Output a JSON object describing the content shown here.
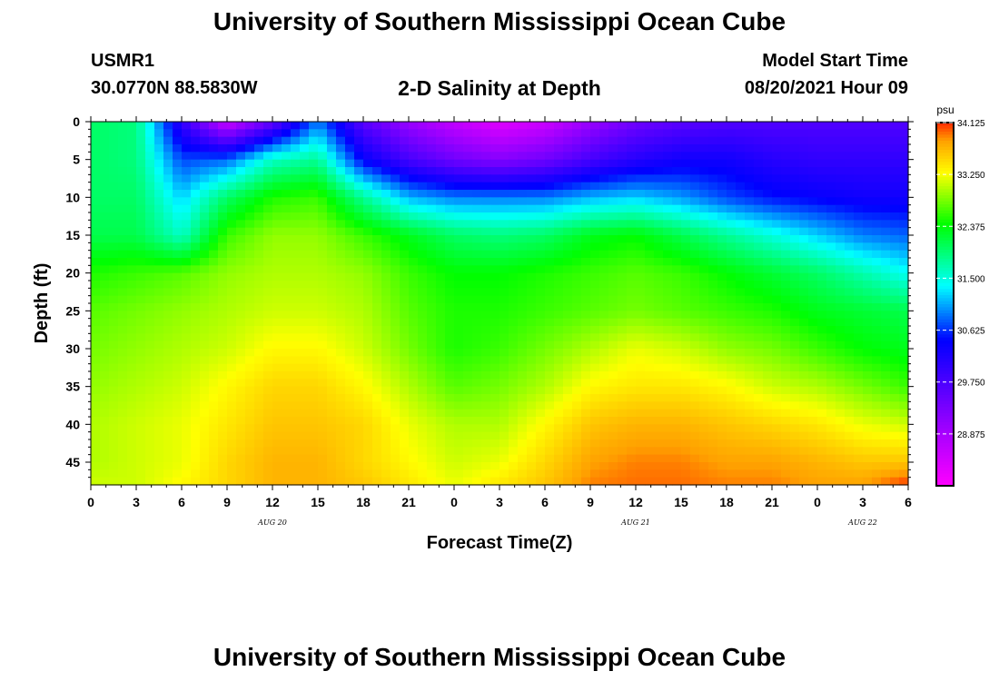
{
  "header": {
    "title": "University of Southern Mississippi Ocean Cube",
    "station": "USMR1",
    "coords": "30.0770N  88.5830W",
    "subtitle": "2-D Salinity at Depth",
    "model_start_label": "Model Start Time",
    "model_start_value": "08/20/2021 Hour 09"
  },
  "footer": {
    "title": "University of Southern Mississippi Ocean Cube"
  },
  "chart_data": {
    "type": "heatmap",
    "title": "2-D Salinity at Depth",
    "xlabel": "Forecast Time(Z)",
    "ylabel": "Depth (ft)",
    "x_hours_range": [
      0,
      54
    ],
    "x_tick_labels": [
      "0",
      "3",
      "6",
      "9",
      "12",
      "15",
      "18",
      "21",
      "0",
      "3",
      "6",
      "9",
      "12",
      "15",
      "18",
      "21",
      "0",
      "3",
      "6"
    ],
    "x_date_labels": [
      {
        "label": "AUG 20",
        "hour": 12
      },
      {
        "label": "AUG 21",
        "hour": 36
      },
      {
        "label": "AUG 22",
        "hour": 51
      }
    ],
    "y_range_ft": [
      0,
      48
    ],
    "y_ticks": [
      0,
      5,
      10,
      15,
      20,
      25,
      30,
      35,
      40,
      45
    ],
    "colorbar": {
      "unit": "psu",
      "range": [
        28.0,
        34.125
      ],
      "tick_values": [
        34.125,
        33.25,
        32.375,
        31.5,
        30.625,
        29.75,
        28.875
      ],
      "tick_labels": [
        "34.125",
        "33.250",
        "32.375",
        "31.500",
        "30.625",
        "29.750",
        "28.875"
      ]
    },
    "salinity_grid": {
      "hours": [
        0,
        3,
        6,
        9,
        12,
        15,
        18,
        21,
        24,
        27,
        30,
        33,
        36,
        39,
        42,
        45,
        48,
        51,
        54
      ],
      "depths_ft": [
        0,
        5,
        10,
        15,
        20,
        25,
        30,
        35,
        40,
        45,
        48
      ],
      "values_psu": [
        [
          32.0,
          31.9,
          30.0,
          28.5,
          29.5,
          30.9,
          29.6,
          29.0,
          28.6,
          28.3,
          28.5,
          29.0,
          29.4,
          29.6,
          29.7,
          29.7,
          29.7,
          29.7,
          29.7
        ],
        [
          32.0,
          31.9,
          30.7,
          30.8,
          31.6,
          31.8,
          30.4,
          29.8,
          29.4,
          29.2,
          29.4,
          29.8,
          30.1,
          30.3,
          30.3,
          30.1,
          30.0,
          30.0,
          30.0
        ],
        [
          32.0,
          32.0,
          31.2,
          32.0,
          32.5,
          32.6,
          31.8,
          31.1,
          30.9,
          30.9,
          30.9,
          31.1,
          31.2,
          31.0,
          30.7,
          30.5,
          30.4,
          30.3,
          30.3
        ],
        [
          32.1,
          32.1,
          31.6,
          32.6,
          32.9,
          32.9,
          32.6,
          32.3,
          32.0,
          31.9,
          32.0,
          32.3,
          32.4,
          32.1,
          31.8,
          31.5,
          31.2,
          30.9,
          30.8
        ],
        [
          32.5,
          32.6,
          32.7,
          32.9,
          33.0,
          33.0,
          32.9,
          32.6,
          32.4,
          32.4,
          32.5,
          32.6,
          32.7,
          32.6,
          32.4,
          32.2,
          32.0,
          31.7,
          31.4
        ],
        [
          32.7,
          32.8,
          32.9,
          33.0,
          33.1,
          33.1,
          33.0,
          32.7,
          32.5,
          32.5,
          32.6,
          32.7,
          32.8,
          32.7,
          32.6,
          32.5,
          32.3,
          32.2,
          32.1
        ],
        [
          32.8,
          32.9,
          33.0,
          33.1,
          33.3,
          33.3,
          33.1,
          32.8,
          32.5,
          32.6,
          32.8,
          33.0,
          33.2,
          33.1,
          32.9,
          32.8,
          32.6,
          32.4,
          32.3
        ],
        [
          32.9,
          33.0,
          33.1,
          33.3,
          33.5,
          33.5,
          33.3,
          33.0,
          32.7,
          32.8,
          33.0,
          33.3,
          33.4,
          33.4,
          33.3,
          33.1,
          33.0,
          32.8,
          32.6
        ],
        [
          33.0,
          33.1,
          33.2,
          33.4,
          33.6,
          33.6,
          33.5,
          33.2,
          33.0,
          33.0,
          33.3,
          33.6,
          33.7,
          33.7,
          33.6,
          33.5,
          33.4,
          33.2,
          33.1
        ],
        [
          33.0,
          33.1,
          33.2,
          33.5,
          33.7,
          33.7,
          33.5,
          33.3,
          33.1,
          33.2,
          33.5,
          33.8,
          33.9,
          33.9,
          33.8,
          33.8,
          33.7,
          33.6,
          33.6
        ],
        [
          33.1,
          33.1,
          33.3,
          33.5,
          33.7,
          33.7,
          33.6,
          33.4,
          33.2,
          33.4,
          33.6,
          33.9,
          33.95,
          33.95,
          33.9,
          33.9,
          33.8,
          33.8,
          34.1
        ]
      ]
    }
  }
}
